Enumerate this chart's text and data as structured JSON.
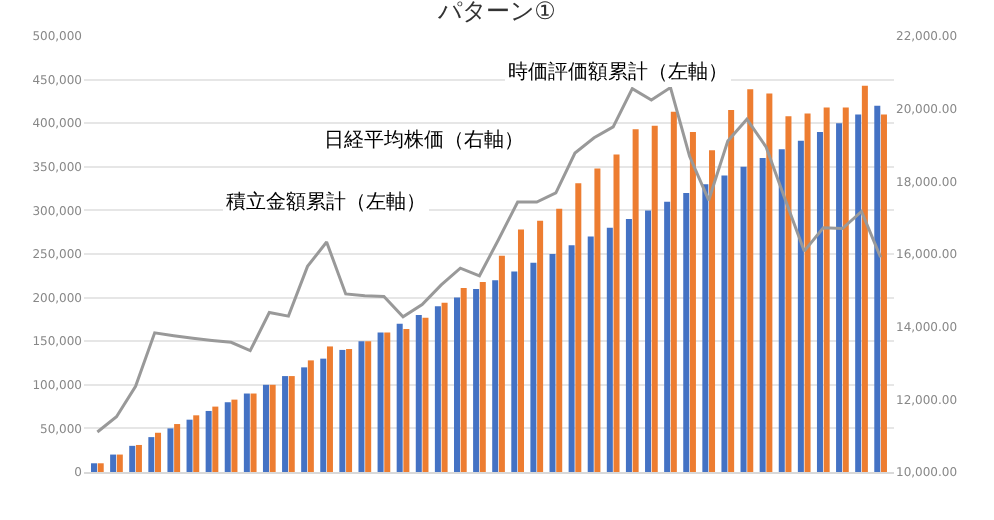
{
  "chart_data": {
    "type": "bar",
    "title": "パターン①",
    "categories": [
      null,
      null,
      null,
      null,
      null,
      null,
      null,
      null,
      null,
      null,
      null,
      null,
      null,
      null,
      null,
      null,
      null,
      null,
      null,
      null,
      null,
      null,
      null,
      null,
      null,
      null,
      null,
      null,
      null,
      null,
      null,
      null,
      null,
      null,
      null,
      null,
      null,
      null,
      null,
      null,
      null,
      null
    ],
    "series": [
      {
        "color": "#4472c4",
        "values": [
          10000,
          20000,
          30000,
          40000,
          50000,
          60000,
          70000,
          80000,
          90000,
          100000,
          110000,
          120000,
          130000,
          140000,
          150000,
          160000,
          170000,
          180000,
          190000,
          200000,
          210000,
          220000,
          230000,
          240000,
          250000,
          260000,
          270000,
          280000,
          290000,
          300000,
          310000,
          320000,
          330000,
          340000,
          350000,
          360000,
          370000,
          380000,
          390000,
          400000,
          410000,
          420000
        ]
      },
      {
        "color": "#ed7d31",
        "values": [
          10000,
          20000,
          31000,
          45000,
          55000,
          65000,
          75000,
          83000,
          90000,
          100000,
          110000,
          128000,
          144000,
          141000,
          150000,
          160000,
          164000,
          177000,
          194000,
          211000,
          218000,
          248000,
          278000,
          288000,
          302000,
          331000,
          348000,
          364000,
          393000,
          397000,
          413000,
          390000,
          369000,
          415000,
          439000,
          434000,
          408000,
          411000,
          418000,
          418000,
          443000,
          410000
        ]
      },
      {
        "type": "line",
        "axis": "y2",
        "color": "#999999",
        "values": [
          11100,
          11520,
          12360,
          13830,
          13750,
          13680,
          13620,
          13570,
          13340,
          14390,
          14290,
          15660,
          16330,
          14900,
          14850,
          14830,
          14270,
          14610,
          15150,
          15610,
          15400,
          16400,
          17430,
          17430,
          17680,
          18780,
          19200,
          19500,
          20550,
          20240,
          20580,
          18690,
          17480,
          19110,
          19710,
          18950,
          17510,
          16080,
          16720,
          16700,
          17170,
          15910
        ]
      }
    ],
    "ylim": [
      0,
      500000
    ],
    "yticks": [
      {
        "value": 0,
        "label": "0"
      },
      {
        "value": 50000,
        "label": "50,000"
      },
      {
        "value": 100000,
        "label": "100,000"
      },
      {
        "value": 150000,
        "label": "150,000"
      },
      {
        "value": 200000,
        "label": "200,000"
      },
      {
        "value": 250000,
        "label": "250,000"
      },
      {
        "value": 300000,
        "label": "300,000"
      },
      {
        "value": 350000,
        "label": "350,000"
      },
      {
        "value": 400000,
        "label": "400,000"
      },
      {
        "value": 450000,
        "label": "450,000"
      },
      {
        "value": 500000,
        "label": "500,000"
      }
    ],
    "y2lim": [
      10000,
      22000
    ],
    "y2ticks": [
      {
        "value": 10000,
        "label": "10,000.00"
      },
      {
        "value": 12000,
        "label": "12,000.00"
      },
      {
        "value": 14000,
        "label": "14,000.00"
      },
      {
        "value": 16000,
        "label": "16,000.00"
      },
      {
        "value": 18000,
        "label": "18,000.00"
      },
      {
        "value": 20000,
        "label": "20,000.00"
      },
      {
        "value": 22000,
        "label": "22,000.00"
      }
    ],
    "grid": "y",
    "marker": "none",
    "line_style": "solid",
    "annotations": [
      "時価評価額累計（左軸）",
      "日経平均株価（右軸）",
      "積立金額累計（左軸）"
    ]
  }
}
